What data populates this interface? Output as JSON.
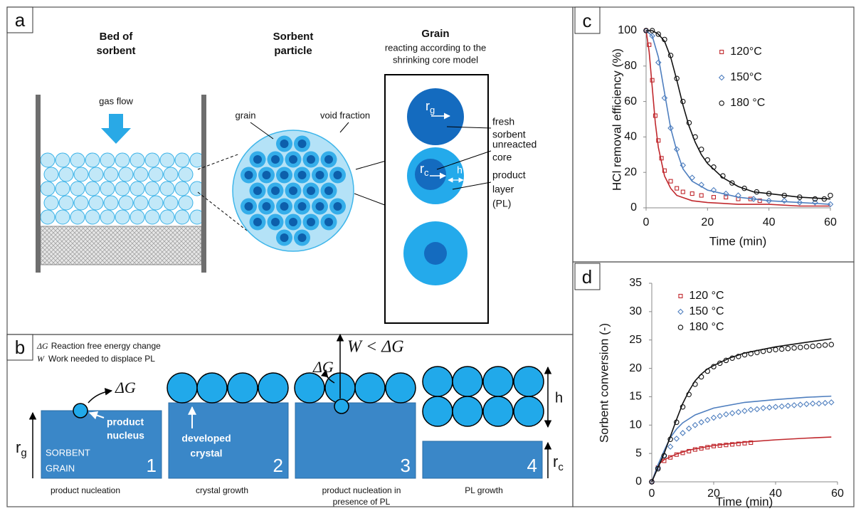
{
  "panel_a": {
    "label": "a",
    "bed_title": [
      "Bed of",
      "sorbent"
    ],
    "particle_title": [
      "Sorbent",
      "particle"
    ],
    "grain_title": "Grain",
    "grain_subtitle": [
      "reacting according to the",
      "shrinking core model"
    ],
    "gas_flow": "gas flow",
    "grain_label": "grain",
    "void_label": "void fraction",
    "rg": {
      "symbol": "r",
      "subscript": "g"
    },
    "rc": {
      "symbol": "r",
      "subscript": "c"
    },
    "h": "h",
    "fresh": [
      "fresh",
      "sorbent"
    ],
    "core": [
      "unreacted",
      "core"
    ],
    "layer": [
      "product",
      "layer",
      "(PL)"
    ]
  },
  "panel_b": {
    "label": "b",
    "legend": [
      {
        "symbol": "ΔG",
        "text": "Reaction free energy change"
      },
      {
        "symbol": "W",
        "text": "Work needed to displace PL"
      }
    ],
    "stages": [
      {
        "number": "1",
        "caption": [
          "product nucleation"
        ]
      },
      {
        "number": "2",
        "caption": [
          "crystal growth"
        ]
      },
      {
        "number": "3",
        "caption": [
          "product nucleation in",
          "presence of PL"
        ]
      },
      {
        "number": "4",
        "caption": [
          "PL growth"
        ]
      }
    ],
    "sorbent_grain": [
      "SORBENT",
      "GRAIN"
    ],
    "nucleus": [
      "product",
      "nucleus"
    ],
    "crystal": [
      "developed",
      "crystal"
    ],
    "dg": "ΔG",
    "w_lt_dg": "W < ΔG",
    "rg": {
      "symbol": "r",
      "subscript": "g"
    },
    "rc": {
      "symbol": "r",
      "subscript": "c"
    },
    "h": "h"
  },
  "chart_data": [
    {
      "type": "scatter",
      "label": "c",
      "x_label": "Time (min)",
      "y_label": "HCl removal  efficiency (%)",
      "xlim": [
        0,
        60
      ],
      "xticks": [
        0,
        20,
        40,
        60
      ],
      "ylim": [
        0,
        100
      ],
      "yticks": [
        0,
        20,
        40,
        60,
        80,
        100
      ],
      "grid": false,
      "legend": "upper right",
      "series": [
        {
          "name": "120°C",
          "color": "#c0282d",
          "marker": "square",
          "x": [
            0,
            1,
            2,
            3,
            4,
            5,
            6,
            8,
            10,
            12,
            15,
            18,
            22,
            26,
            30,
            34,
            37
          ],
          "values": [
            100,
            92,
            72,
            52,
            38,
            28,
            21,
            15,
            11,
            9,
            8,
            7,
            6,
            6,
            5,
            5,
            4
          ],
          "fit": {
            "x": [
              0,
              1,
              2,
              3,
              4,
              6,
              8,
              10,
              15,
              20,
              30,
              40,
              50,
              60
            ],
            "values": [
              100,
              88,
              68,
              48,
              34,
              18,
              11,
              7,
              4,
              3,
              2,
              2,
              1,
              1
            ]
          }
        },
        {
          "name": "150°C",
          "color": "#4f7fbf",
          "marker": "diamond",
          "x": [
            0,
            2,
            4,
            6,
            8,
            10,
            12,
            15,
            18,
            22,
            26,
            30,
            35,
            40,
            45,
            50,
            55,
            60
          ],
          "values": [
            100,
            97,
            82,
            62,
            45,
            33,
            24,
            17,
            13,
            10,
            8,
            7,
            5,
            4,
            4,
            3,
            3,
            2
          ],
          "fit": {
            "x": [
              0,
              2,
              4,
              6,
              8,
              10,
              12,
              15,
              20,
              25,
              30,
              40,
              50,
              60
            ],
            "values": [
              100,
              97,
              85,
              65,
              45,
              32,
              22,
              15,
              10,
              8,
              6,
              4,
              3,
              2
            ]
          }
        },
        {
          "name": "180 °C",
          "color": "#111111",
          "marker": "circle",
          "x": [
            0,
            2,
            4,
            6,
            8,
            10,
            12,
            14,
            16,
            18,
            20,
            22,
            25,
            28,
            32,
            36,
            40,
            45,
            50,
            55,
            58,
            60
          ],
          "values": [
            100,
            100,
            98,
            95,
            86,
            73,
            60,
            48,
            40,
            33,
            27,
            23,
            18,
            14,
            11,
            9,
            8,
            7,
            6,
            5,
            5,
            7
          ],
          "fit": {
            "x": [
              0,
              2,
              4,
              6,
              8,
              10,
              12,
              14,
              16,
              18,
              20,
              25,
              30,
              35,
              40,
              50,
              60
            ],
            "values": [
              100,
              100,
              98,
              94,
              85,
              72,
              58,
              46,
              37,
              30,
              25,
              17,
              12,
              9,
              8,
              6,
              5
            ]
          }
        }
      ]
    },
    {
      "type": "scatter",
      "label": "d",
      "x_label": "Time (min)",
      "y_label": "Sorbent  conversion (-)",
      "xlim": [
        0,
        60
      ],
      "xticks": [
        0,
        20,
        40,
        60
      ],
      "ylim": [
        0,
        35
      ],
      "yticks": [
        0,
        5,
        10,
        15,
        20,
        25,
        30,
        35
      ],
      "grid": false,
      "legend": "upper left",
      "series": [
        {
          "name": "120 °C",
          "color": "#c0282d",
          "marker": "square",
          "x": [
            0,
            2,
            4,
            6,
            8,
            10,
            12,
            14,
            16,
            18,
            20,
            22,
            24,
            26,
            28,
            30,
            32
          ],
          "values": [
            0,
            2.5,
            3.7,
            4.3,
            4.8,
            5.1,
            5.4,
            5.7,
            5.9,
            6.1,
            6.3,
            6.4,
            6.5,
            6.6,
            6.7,
            6.8,
            6.9
          ],
          "fit": {
            "x": [
              0,
              2,
              4,
              8,
              12,
              20,
              30,
              40,
              50,
              58
            ],
            "values": [
              0,
              3,
              3.9,
              4.9,
              5.6,
              6.4,
              7,
              7.4,
              7.7,
              7.9
            ]
          }
        },
        {
          "name": "150 °C",
          "color": "#4f7fbf",
          "marker": "diamond",
          "x": [
            0,
            2,
            4,
            6,
            8,
            10,
            12,
            14,
            16,
            18,
            20,
            22,
            24,
            26,
            28,
            30,
            32,
            34,
            36,
            38,
            40,
            42,
            44,
            46,
            48,
            50,
            52,
            54,
            56,
            58
          ],
          "values": [
            0,
            2.5,
            4.6,
            6.2,
            7.6,
            8.6,
            9.4,
            10,
            10.5,
            10.9,
            11.3,
            11.6,
            11.9,
            12.1,
            12.3,
            12.5,
            12.7,
            12.8,
            13,
            13.1,
            13.2,
            13.3,
            13.4,
            13.5,
            13.6,
            13.7,
            13.8,
            13.8,
            13.9,
            14
          ],
          "fit": {
            "x": [
              0,
              2,
              4,
              6,
              8,
              10,
              14,
              20,
              30,
              40,
              50,
              58
            ],
            "values": [
              0,
              3,
              5.5,
              7.8,
              9.3,
              10.4,
              11.8,
              13,
              14,
              14.5,
              14.9,
              15.1
            ]
          }
        },
        {
          "name": "180 °C",
          "color": "#111111",
          "marker": "circle",
          "x": [
            0,
            2,
            4,
            6,
            8,
            10,
            12,
            14,
            16,
            18,
            20,
            22,
            24,
            26,
            28,
            30,
            32,
            34,
            36,
            38,
            40,
            42,
            44,
            46,
            48,
            50,
            52,
            54,
            56,
            58
          ],
          "values": [
            0,
            2.3,
            4.6,
            7.5,
            10.5,
            13.2,
            15.4,
            17.2,
            18.5,
            19.5,
            20.3,
            20.9,
            21.4,
            21.8,
            22.1,
            22.4,
            22.6,
            22.8,
            23,
            23.2,
            23.3,
            23.4,
            23.5,
            23.6,
            23.7,
            23.8,
            23.9,
            24,
            24.1,
            24.2
          ],
          "fit": {
            "x": [
              0,
              2,
              4,
              6,
              8,
              10,
              12,
              14,
              16,
              18,
              20,
              25,
              30,
              40,
              50,
              58
            ],
            "values": [
              0,
              2.5,
              5,
              8,
              11,
              13.8,
              16,
              17.8,
              19,
              19.9,
              20.5,
              21.8,
              22.7,
              23.8,
              24.6,
              25.2
            ]
          }
        }
      ]
    }
  ]
}
